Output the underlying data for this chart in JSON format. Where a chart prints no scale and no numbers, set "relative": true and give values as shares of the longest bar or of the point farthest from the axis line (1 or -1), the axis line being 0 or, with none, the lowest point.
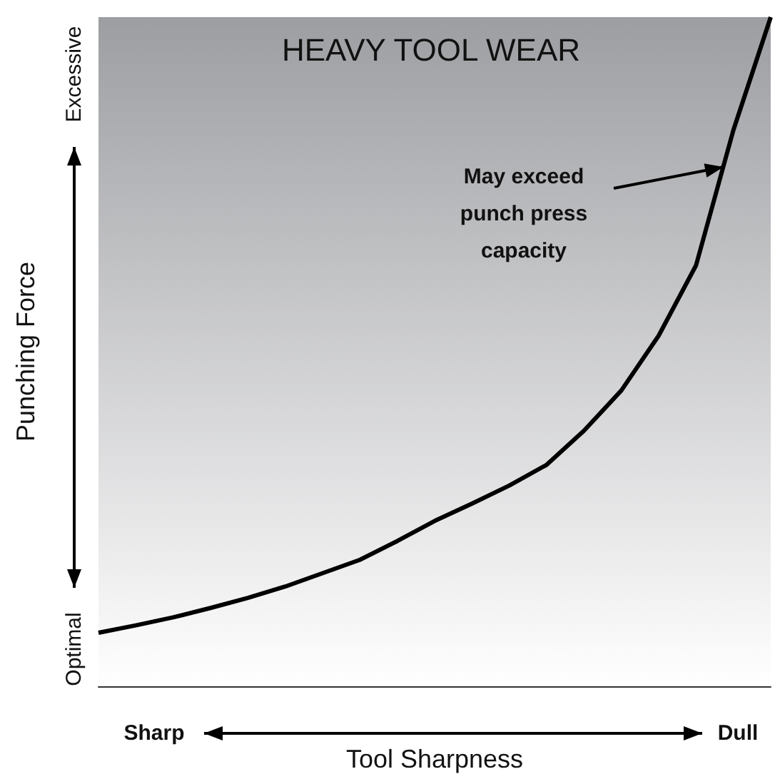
{
  "chart_data": {
    "type": "line",
    "relative": true,
    "xlabel": "Tool Sharpness",
    "ylabel": "Punching Force",
    "color": "#000000",
    "marker": "none",
    "categories": [
      null,
      null,
      null,
      null,
      null,
      null,
      null,
      null,
      null,
      null,
      null,
      null,
      null,
      null,
      null,
      null,
      null,
      null,
      null
    ],
    "values": [
      0.08,
      0.091,
      0.103,
      0.117,
      0.132,
      0.149,
      0.169,
      0.189,
      0.217,
      0.247,
      0.273,
      0.3,
      0.331,
      0.382,
      0.442,
      0.524,
      0.629,
      0.831,
      1
    ],
    "annotations": [
      "HEAVY TOOL WEAR",
      "May exceed\npunch press\ncapacity",
      "Optimal",
      "Excessive",
      "Sharp",
      "Dull"
    ]
  }
}
